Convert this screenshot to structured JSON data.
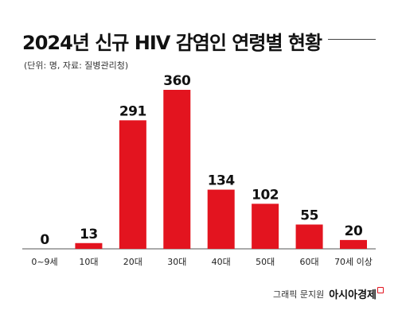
{
  "header": {
    "title": "2024년 신규 HIV 감염인 연령별 현황",
    "subtitle": "(단위: 명, 자료: 질병관리청)"
  },
  "footer": {
    "credit": "그래픽 문지원",
    "brand": "아시아경제"
  },
  "colors": {
    "bar": "#e3141f",
    "baseline": "#555555",
    "text": "#111111"
  },
  "chart_data": {
    "type": "bar",
    "title": "2024년 신규 HIV 감염인 연령별 현황",
    "subtitle": "(단위: 명, 자료: 질병관리청)",
    "categories": [
      "0~9세",
      "10대",
      "20대",
      "30대",
      "40대",
      "50대",
      "60대",
      "70세 이상"
    ],
    "values": [
      0,
      13,
      291,
      360,
      134,
      102,
      55,
      20
    ],
    "ylim": [
      0,
      360
    ],
    "xlabel": "",
    "ylabel": "",
    "grid": false,
    "legend": "none",
    "data_labels": true
  }
}
